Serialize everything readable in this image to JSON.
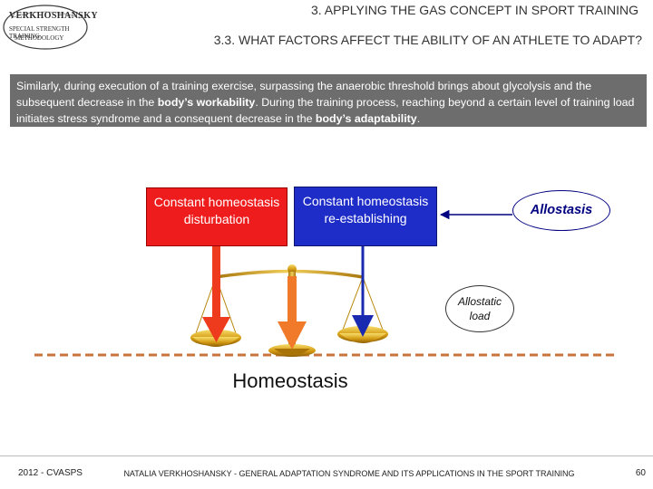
{
  "logo": {
    "title": "VERKHOSHANSKY",
    "line1": "SPECIAL STRENGTH TRAINING",
    "line2": "METHODOLOGY"
  },
  "header": {
    "title": "3. APPLYING THE GAS CONCEPT IN SPORT TRAINING",
    "subtitle": "3.3. WHAT FACTORS AFFECT THE ABILITY OF AN ATHLETE TO ADAPT?"
  },
  "intro": {
    "part1": "Similarly, during execution of a training exercise, surpassing the anaerobic threshold brings about glycolysis and the subsequent decrease in the ",
    "bold1": "body’s workability",
    "part2": ". During the training process, reaching beyond a certain level of training load initiates stress syndrome and a consequent decrease in the ",
    "bold2": "body’s adaptability",
    "part3": "."
  },
  "diagram": {
    "disturbation": "Constant homeostasis disturbation",
    "reestablishing": "Constant homeostasis re-establishing",
    "allostasis": "Allostasis",
    "allostatic_load": "Allostatic load",
    "homeostasis": "Homeostasis",
    "colors": {
      "red": "#ee1c1c",
      "blue": "#1e2cc8",
      "orange": "#f07a2a",
      "navy": "#000080",
      "gold": "#d9a21b",
      "dash": "#c8743c"
    }
  },
  "footer": {
    "left": "2012 - CVASPS",
    "center": "NATALIA VERKHOSHANSKY - GENERAL ADAPTATION SYNDROME AND ITS APPLICATIONS IN THE SPORT TRAINING",
    "page": "60"
  }
}
